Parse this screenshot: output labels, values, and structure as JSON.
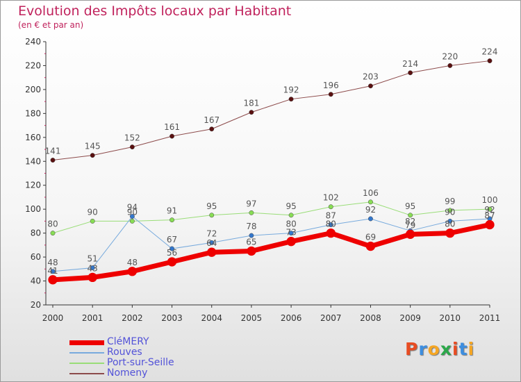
{
  "chart_data": {
    "type": "line",
    "title": "Evolution des Impôts locaux par Habitant",
    "subtitle": "(en € et par an)",
    "xlabel": "",
    "ylabel": "",
    "ylim": [
      20,
      240
    ],
    "yticks": [
      20,
      40,
      60,
      80,
      100,
      120,
      140,
      160,
      180,
      200,
      220,
      240
    ],
    "categories": [
      "2000",
      "2001",
      "2002",
      "2003",
      "2004",
      "2005",
      "2006",
      "2007",
      "2008",
      "2009",
      "2010",
      "2011"
    ],
    "grid": false,
    "series": [
      {
        "name": "Nomeny",
        "color": "#8c4a4a",
        "marker": "#5a1010",
        "width": 1,
        "values": [
          141,
          145,
          152,
          161,
          167,
          181,
          192,
          196,
          203,
          214,
          220,
          224
        ],
        "labels": [
          "141",
          "145",
          "152",
          "161",
          "167",
          "181",
          "192",
          "196",
          "203",
          "214",
          "220",
          "224"
        ]
      },
      {
        "name": "Port-sur-Seille",
        "color": "#99dd77",
        "marker": "#88dd55",
        "width": 1,
        "values": [
          80,
          90,
          90,
          91,
          95,
          97,
          95,
          102,
          106,
          95,
          99,
          100
        ],
        "labels": [
          "80",
          "90",
          "90",
          "91",
          "95",
          "97",
          "95",
          "102",
          "106",
          "95",
          "99",
          "100"
        ]
      },
      {
        "name": "Rouves",
        "color": "#77aadd",
        "marker": "#3377cc",
        "width": 1,
        "values": [
          48,
          51,
          94,
          67,
          72,
          78,
          80,
          87,
          92,
          82,
          90,
          92
        ],
        "labels": [
          "48",
          "51",
          "94",
          "67",
          "72",
          "78",
          "80",
          "87",
          "92",
          "82",
          "90",
          "92"
        ]
      },
      {
        "name": "CléMERY",
        "color": "#ee0000",
        "marker": "#ee0000",
        "width": 7,
        "values": [
          41,
          43,
          48,
          56,
          64,
          65,
          73,
          80,
          69,
          79,
          80,
          87
        ],
        "labels": [
          "41",
          "43",
          "48",
          "56",
          "64",
          "65",
          "73",
          "80",
          "69",
          "79",
          "80",
          "87"
        ]
      }
    ],
    "legend": {
      "placement": "bottom-left",
      "order": [
        "CléMERY",
        "Rouves",
        "Port-sur-Seille",
        "Nomeny"
      ]
    }
  },
  "logo": {
    "letters": [
      "P",
      "r",
      "o",
      "x",
      "i",
      "t",
      "i"
    ],
    "colors": [
      "#e84c22",
      "#3d8ee0",
      "#f5a623",
      "#2ba84a",
      "#e84c22",
      "#3d8ee0",
      "#f5a623"
    ]
  }
}
